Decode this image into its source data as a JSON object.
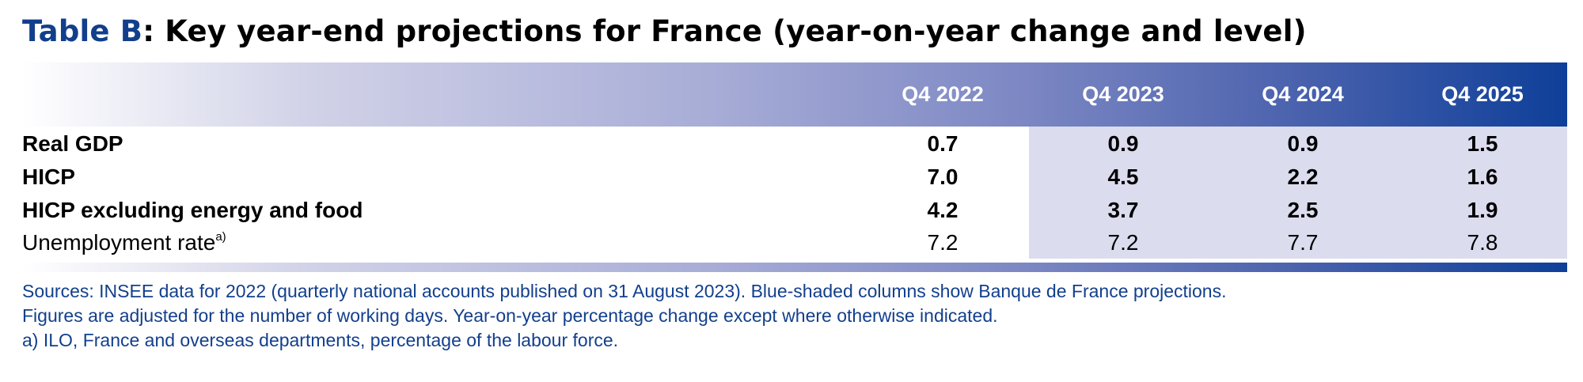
{
  "title": {
    "lead": "Table B",
    "rest": ": Key year-end projections for France (year-on-year change and level)"
  },
  "columns": [
    "Q4 2022",
    "Q4 2023",
    "Q4 2024",
    "Q4 2025"
  ],
  "rows": [
    {
      "label": "Real GDP",
      "sup": "",
      "bold": true,
      "values": [
        "0.7",
        "0.9",
        "0.9",
        "1.5"
      ]
    },
    {
      "label": "HICP",
      "sup": "",
      "bold": true,
      "values": [
        "7.0",
        "4.5",
        "2.2",
        "1.6"
      ]
    },
    {
      "label": "HICP excluding energy and food",
      "sup": "",
      "bold": true,
      "values": [
        "4.2",
        "3.7",
        "2.5",
        "1.9"
      ]
    },
    {
      "label": "Unemployment rate",
      "sup": "a)",
      "bold": false,
      "values": [
        "7.2",
        "7.2",
        "7.7",
        "7.8"
      ]
    }
  ],
  "notes": [
    "Sources: INSEE data for 2022 (quarterly national accounts published on 31 August 2023). Blue-shaded columns show Banque de France projections.",
    "Figures are adjusted for the number of working days. Year-on-year percentage change except where otherwise indicated.",
    "a)  ILO, France and overseas departments, percentage of the labour force."
  ],
  "colors": {
    "title_accent": "#123f8c",
    "header_dark": "#0e3f99",
    "projection_shade": "#dcdcef",
    "note_text": "#123f8c"
  }
}
